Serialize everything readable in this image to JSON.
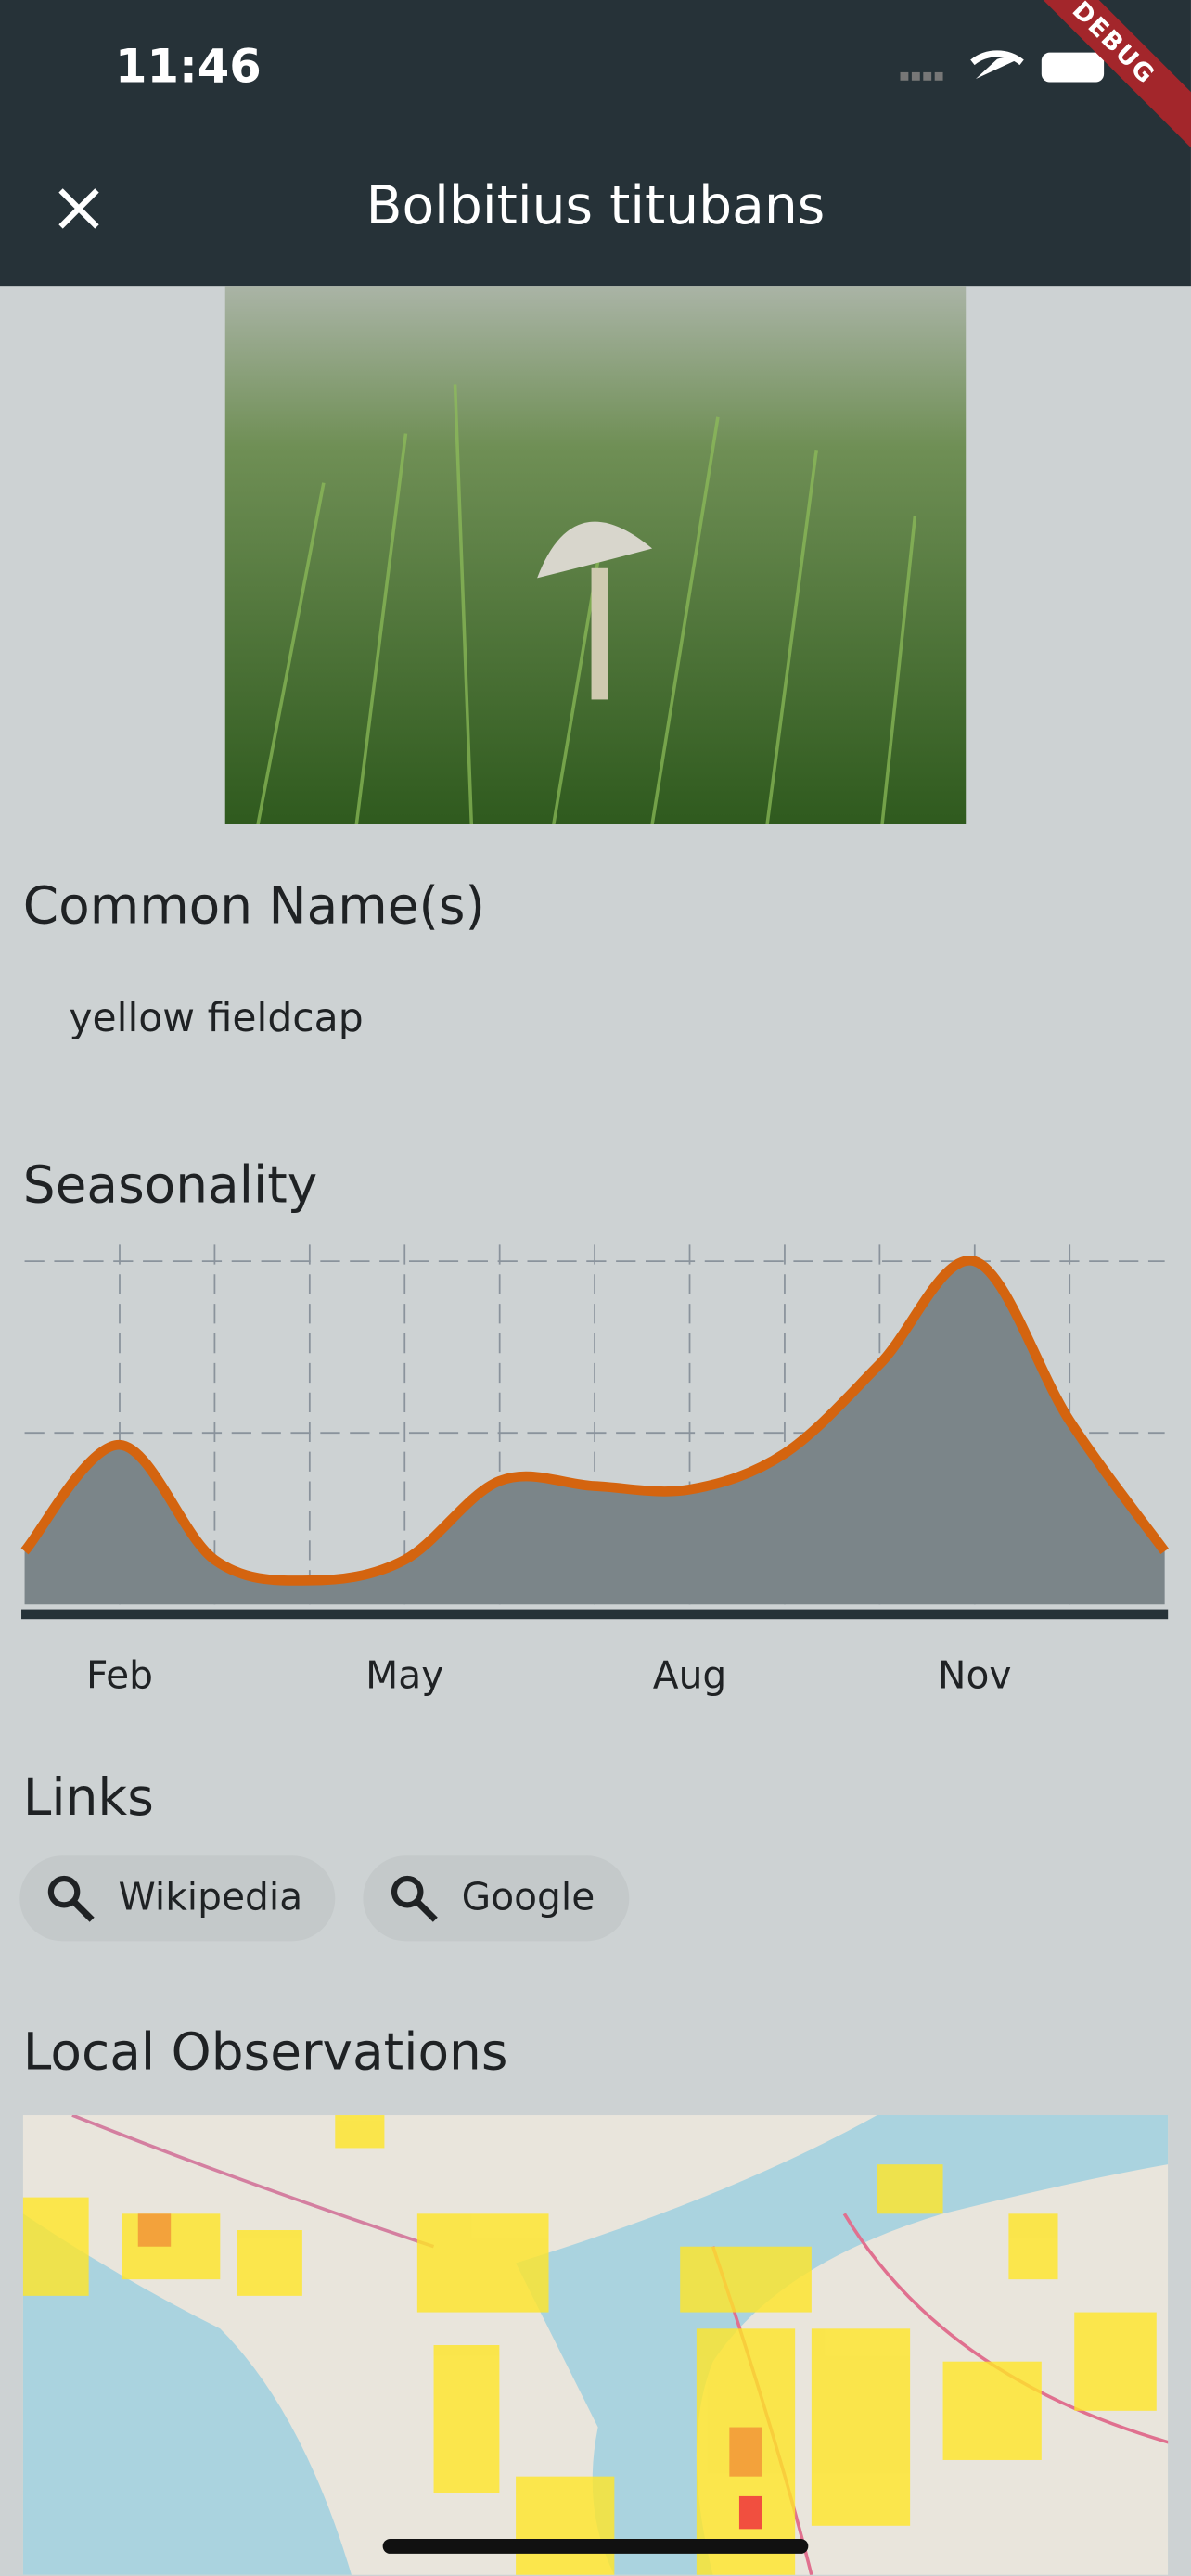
{
  "status_bar": {
    "time": "11:46"
  },
  "debug_banner": "DEBUG",
  "app_bar": {
    "title": "Bolbitius titubans"
  },
  "common_names": {
    "heading": "Common Name(s)",
    "names": [
      "yellow fieldcap"
    ]
  },
  "chart_data": {
    "type": "area",
    "title": "Seasonality",
    "categories": [
      null,
      "Feb",
      null,
      null,
      "May",
      null,
      null,
      "Aug",
      null,
      null,
      "Nov",
      null,
      null
    ],
    "values": [
      0.31,
      0.93,
      0.26,
      0.14,
      0.26,
      0.72,
      0.69,
      0.67,
      0.88,
      1.4,
      2.0,
      1.07,
      0.31
    ],
    "color": "#7b8589",
    "line_color": "#d4640f",
    "ylim": [
      0,
      2
    ],
    "yticks": [
      1,
      2
    ],
    "grid": true
  },
  "links": {
    "heading": "Links",
    "items": [
      "Wikipedia",
      "Google"
    ]
  },
  "observations": {
    "heading": "Local Observations"
  }
}
